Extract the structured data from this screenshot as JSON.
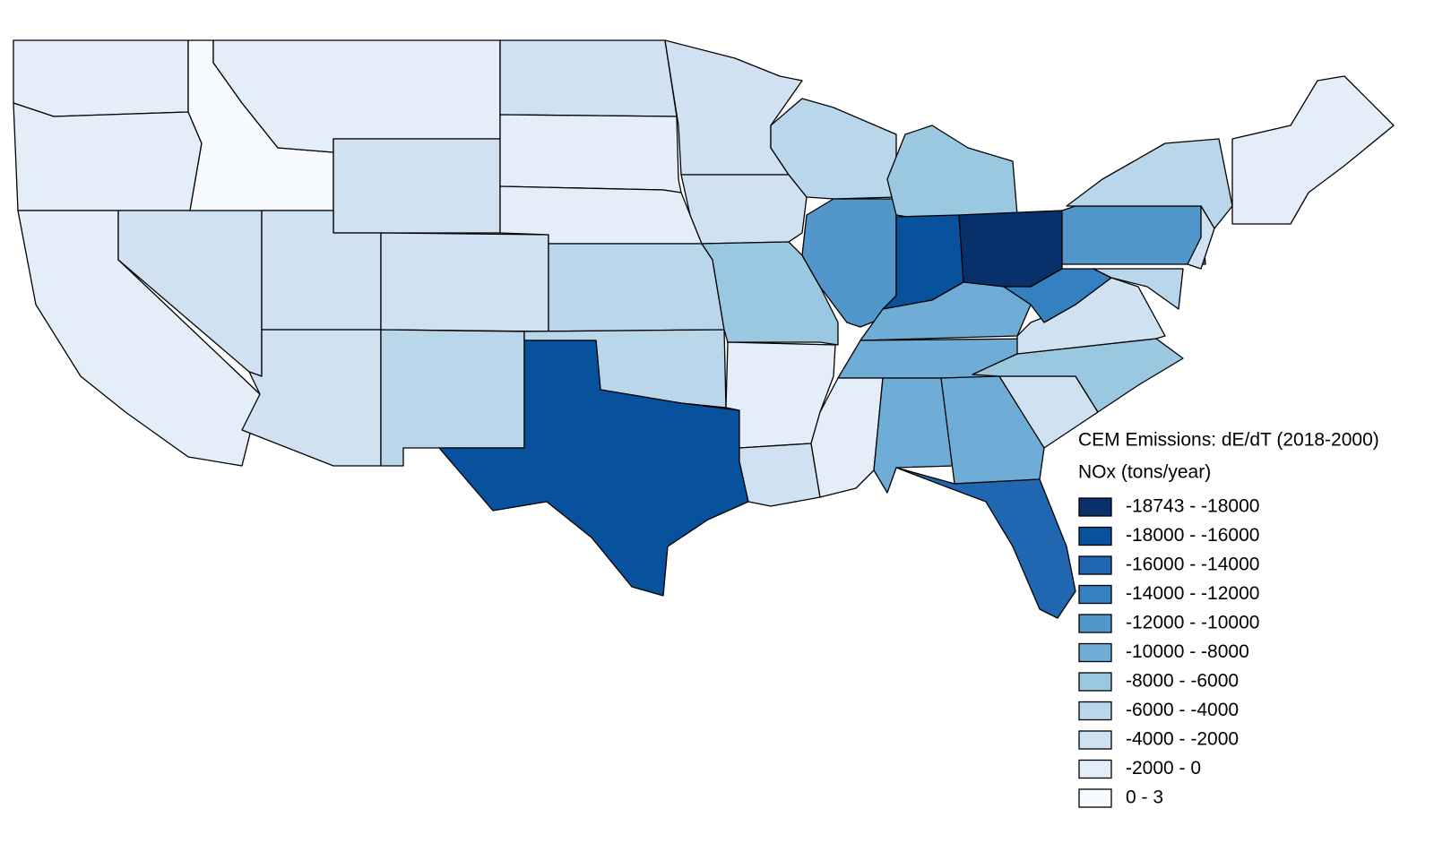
{
  "legend": {
    "title": "CEM Emissions: dE/dT (2018-2000)",
    "subtitle": "NOx (tons/year)",
    "items": [
      {
        "label": "-18743 - -18000",
        "color": "#08306b"
      },
      {
        "label": "-18000 - -16000",
        "color": "#08519c"
      },
      {
        "label": "-16000 - -14000",
        "color": "#2166b0"
      },
      {
        "label": "-14000 - -12000",
        "color": "#3580c0"
      },
      {
        "label": "-12000 - -10000",
        "color": "#5297cb"
      },
      {
        "label": "-10000 - -8000",
        "color": "#6fadd7"
      },
      {
        "label": "-8000 - -6000",
        "color": "#9ac8e1"
      },
      {
        "label": "-6000 - -4000",
        "color": "#bad6eb"
      },
      {
        "label": "-4000 - -2000",
        "color": "#d0e2f2"
      },
      {
        "label": "-2000 - 0",
        "color": "#e3eef9"
      },
      {
        "label": "0 - 3",
        "color": "#f7fbff"
      }
    ]
  }
}
